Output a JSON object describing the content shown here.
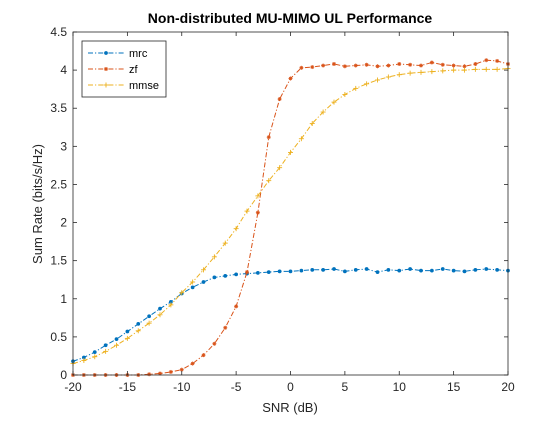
{
  "chart_data": {
    "type": "line",
    "title": "Non-distributed MU-MIMO UL Performance",
    "xlabel": "SNR (dB)",
    "ylabel": "Sum Rate (bits/s/Hz)",
    "xlim": [
      -20,
      20
    ],
    "ylim": [
      0,
      4.5
    ],
    "xticks": [
      -20,
      -15,
      -10,
      -5,
      0,
      5,
      10,
      15,
      20
    ],
    "yticks": [
      0,
      0.5,
      1,
      1.5,
      2,
      2.5,
      3,
      3.5,
      4,
      4.5
    ],
    "xtick_labels": [
      "-20",
      "-15",
      "-10",
      "-5",
      "0",
      "5",
      "10",
      "15",
      "20"
    ],
    "ytick_labels": [
      "0",
      "0.5",
      "1",
      "1.5",
      "2",
      "2.5",
      "3",
      "3.5",
      "4",
      "4.5"
    ],
    "grid": false,
    "legend_position": "top-left",
    "x": [
      -20,
      -19,
      -18,
      -17,
      -16,
      -15,
      -14,
      -13,
      -12,
      -11,
      -10,
      -9,
      -8,
      -7,
      -6,
      -5,
      -4,
      -3,
      -2,
      -1,
      0,
      1,
      2,
      3,
      4,
      5,
      6,
      7,
      8,
      9,
      10,
      11,
      12,
      13,
      14,
      15,
      16,
      17,
      18,
      19,
      20
    ],
    "series": [
      {
        "name": "mrc",
        "color": "#0072BD",
        "values": [
          0.18,
          0.23,
          0.3,
          0.39,
          0.47,
          0.57,
          0.67,
          0.77,
          0.87,
          0.96,
          1.07,
          1.15,
          1.22,
          1.28,
          1.3,
          1.32,
          1.33,
          1.34,
          1.35,
          1.36,
          1.36,
          1.37,
          1.38,
          1.38,
          1.39,
          1.36,
          1.38,
          1.39,
          1.35,
          1.38,
          1.37,
          1.39,
          1.37,
          1.37,
          1.39,
          1.37,
          1.36,
          1.38,
          1.39,
          1.38,
          1.37
        ]
      },
      {
        "name": "zf",
        "color": "#D95319",
        "values": [
          0.0,
          0.0,
          0.0,
          0.0,
          0.0,
          0.0,
          0.0,
          0.01,
          0.02,
          0.04,
          0.07,
          0.15,
          0.26,
          0.41,
          0.62,
          0.9,
          1.35,
          2.13,
          3.12,
          3.62,
          3.89,
          4.03,
          4.04,
          4.06,
          4.08,
          4.05,
          4.06,
          4.07,
          4.05,
          4.06,
          4.08,
          4.07,
          4.06,
          4.1,
          4.07,
          4.06,
          4.05,
          4.08,
          4.13,
          4.12,
          4.08
        ]
      },
      {
        "name": "mmse",
        "color": "#EDB120",
        "values": [
          0.15,
          0.19,
          0.24,
          0.31,
          0.39,
          0.48,
          0.58,
          0.68,
          0.79,
          0.92,
          1.08,
          1.22,
          1.38,
          1.55,
          1.73,
          1.92,
          2.15,
          2.35,
          2.55,
          2.72,
          2.92,
          3.1,
          3.3,
          3.45,
          3.58,
          3.68,
          3.76,
          3.82,
          3.87,
          3.91,
          3.94,
          3.96,
          3.97,
          3.98,
          3.99,
          4.0,
          4.0,
          4.01,
          4.01,
          4.01,
          4.02
        ]
      }
    ]
  }
}
